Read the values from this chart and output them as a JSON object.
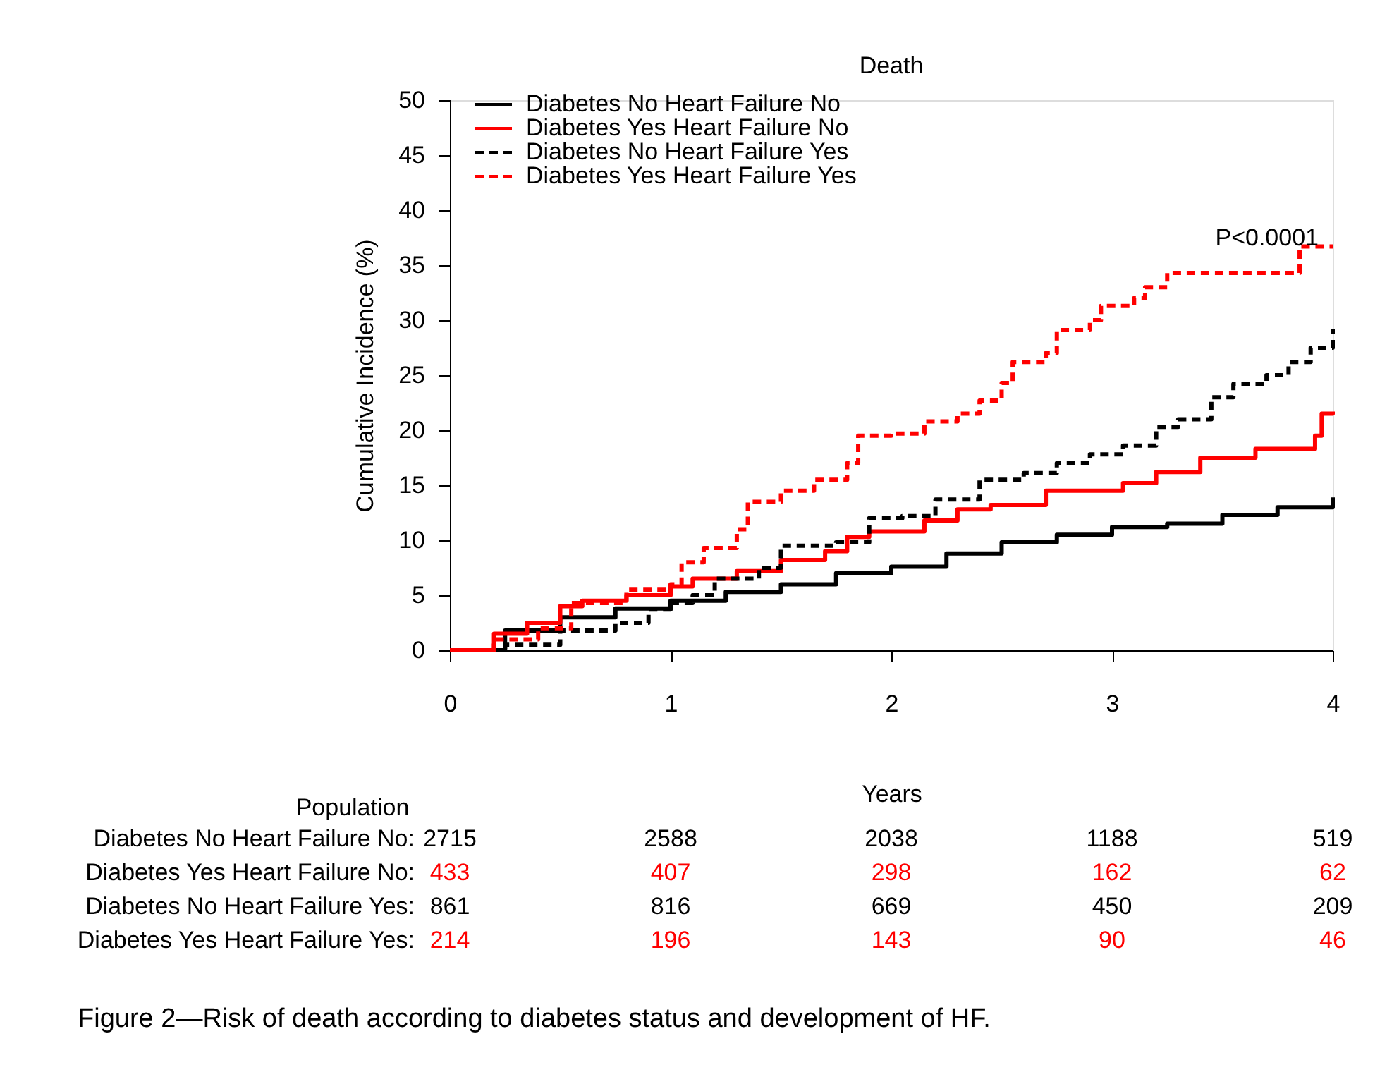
{
  "chart_data": {
    "type": "step",
    "title": "Death",
    "xlabel": "Years",
    "ylabel": "Cumulative Incidence (%)",
    "xlim": [
      0,
      4
    ],
    "xticks": [
      0,
      1,
      2,
      3,
      4
    ],
    "ylim": [
      0,
      50
    ],
    "yticks": [
      0,
      5,
      10,
      15,
      20,
      25,
      30,
      35,
      40,
      45,
      50
    ],
    "grid": false,
    "legend": "top left",
    "marker": "none",
    "series": [
      {
        "name": "Diabetes No Heart Failure No",
        "color": "#000000",
        "line_style": "solid",
        "x": [
          0,
          0.25,
          0.5,
          0.75,
          1,
          1.25,
          1.5,
          1.75,
          2,
          2.25,
          2.5,
          2.75,
          3,
          3.25,
          3.5,
          3.75,
          4
        ],
        "values": [
          0,
          1.8,
          3,
          3.8,
          4.5,
          5.3,
          6,
          7,
          7.6,
          8.8,
          9.8,
          10.5,
          11.2,
          11.5,
          12.3,
          13,
          13.9
        ]
      },
      {
        "name": "Diabetes Yes Heart Failure No",
        "color": "#ff0000",
        "line_style": "solid",
        "x": [
          0,
          0.2,
          0.35,
          0.5,
          0.6,
          0.8,
          1,
          1.1,
          1.3,
          1.5,
          1.7,
          1.8,
          1.9,
          2.15,
          2.3,
          2.45,
          2.7,
          3.05,
          3.2,
          3.4,
          3.65,
          3.92,
          3.95,
          4
        ],
        "values": [
          0,
          1.5,
          2.5,
          4,
          4.5,
          5,
          5.8,
          6.5,
          7.2,
          8.2,
          9,
          10.3,
          10.8,
          11.8,
          12.8,
          13.2,
          14.5,
          15.2,
          16.2,
          17.5,
          18.3,
          19.5,
          21.5,
          21.7
        ]
      },
      {
        "name": "Diabetes No Heart Failure Yes",
        "color": "#000000",
        "line_style": "dashed",
        "x": [
          0,
          0.25,
          0.5,
          0.75,
          0.9,
          1,
          1.1,
          1.2,
          1.4,
          1.5,
          1.75,
          1.9,
          2.05,
          2.2,
          2.4,
          2.6,
          2.75,
          2.9,
          3.05,
          3.2,
          3.3,
          3.45,
          3.55,
          3.7,
          3.8,
          3.9,
          4
        ],
        "values": [
          0,
          0.5,
          1.8,
          2.5,
          3.7,
          4.3,
          5,
          6.5,
          7.5,
          9.5,
          9.8,
          12,
          12.2,
          13.7,
          15.5,
          16.1,
          17,
          17.8,
          18.6,
          20.3,
          21,
          23,
          24.2,
          25,
          26.2,
          27.5,
          29.2
        ]
      },
      {
        "name": "Diabetes Yes Heart Failure Yes",
        "color": "#ff0000",
        "line_style": "dashed",
        "x": [
          0,
          0.2,
          0.4,
          0.55,
          0.8,
          1,
          1.05,
          1.15,
          1.3,
          1.35,
          1.5,
          1.65,
          1.8,
          1.85,
          2,
          2.15,
          2.3,
          2.4,
          2.5,
          2.55,
          2.7,
          2.75,
          2.9,
          2.95,
          3.1,
          3.15,
          3.25,
          3.85,
          4
        ],
        "values": [
          0,
          1,
          2,
          4.3,
          5.5,
          6,
          8,
          9.3,
          11,
          13.5,
          14.5,
          15.5,
          17,
          19.5,
          19.7,
          20.8,
          21.5,
          22.7,
          24.3,
          26.2,
          27,
          29.1,
          30,
          31.3,
          32,
          33,
          34.3,
          36.7,
          36.7
        ]
      }
    ],
    "annotations": [
      "P<0.0001",
      "Population",
      "Diabetes No Heart Failure No:",
      "2715",
      "2588",
      "2038",
      "1188",
      "519",
      "Diabetes Yes Heart Failure No:",
      "433",
      "407",
      "298",
      "162",
      "62",
      "Diabetes No Heart Failure Yes:",
      "861",
      "816",
      "669",
      "450",
      "209",
      "Diabetes Yes Heart Failure Yes:",
      "214",
      "196",
      "143",
      "90",
      "46",
      "Figure 2—Risk of death according to diabetes status and development of HF."
    ]
  }
}
